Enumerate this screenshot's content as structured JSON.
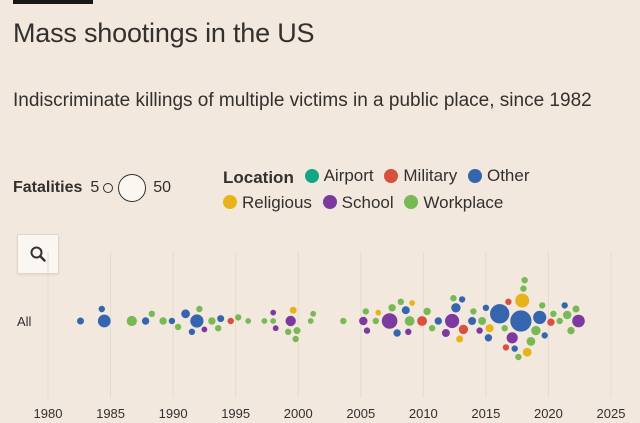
{
  "title": "Mass shootings in the US",
  "subtitle": "Indiscriminate killings of multiple victims in a public place, since 1982",
  "legend": {
    "fatalities_label": "Fatalities",
    "size_min": "5",
    "size_max": "50",
    "location_label": "Location",
    "locations": [
      {
        "name": "Airport",
        "color": "#13a584"
      },
      {
        "name": "Military",
        "color": "#d9503f"
      },
      {
        "name": "Other",
        "color": "#3665b0"
      },
      {
        "name": "Religious",
        "color": "#e8b31a"
      },
      {
        "name": "School",
        "color": "#7c3aa0"
      },
      {
        "name": "Workplace",
        "color": "#76b955"
      }
    ]
  },
  "search_icon": "search-icon",
  "chart_data": {
    "type": "scatter",
    "row_label": "All",
    "xlim": [
      1980,
      2025
    ],
    "xticks": [
      "1980",
      "1985",
      "1990",
      "1995",
      "2000",
      "2005",
      "2010",
      "2015",
      "2020",
      "2025"
    ],
    "size_range": [
      5,
      50
    ],
    "points": [
      {
        "year": 1982.6,
        "fatalities": 7,
        "location": "Other"
      },
      {
        "year": 1984.5,
        "fatalities": 22,
        "location": "Other"
      },
      {
        "year": 1984.3,
        "fatalities": 6,
        "location": "Other"
      },
      {
        "year": 1986.7,
        "fatalities": 14,
        "location": "Workplace"
      },
      {
        "year": 1987.8,
        "fatalities": 8,
        "location": "Other"
      },
      {
        "year": 1988.3,
        "fatalities": 6,
        "location": "Workplace"
      },
      {
        "year": 1989.2,
        "fatalities": 8,
        "location": "Workplace"
      },
      {
        "year": 1989.9,
        "fatalities": 6,
        "location": "Other"
      },
      {
        "year": 1990.4,
        "fatalities": 6,
        "location": "Workplace"
      },
      {
        "year": 1991.0,
        "fatalities": 11,
        "location": "Other"
      },
      {
        "year": 1991.9,
        "fatalities": 23,
        "location": "Other"
      },
      {
        "year": 1991.5,
        "fatalities": 6,
        "location": "Other"
      },
      {
        "year": 1992.1,
        "fatalities": 6,
        "location": "Workplace"
      },
      {
        "year": 1992.5,
        "fatalities": 5,
        "location": "School"
      },
      {
        "year": 1993.1,
        "fatalities": 8,
        "location": "Workplace"
      },
      {
        "year": 1993.6,
        "fatalities": 6,
        "location": "Workplace"
      },
      {
        "year": 1993.8,
        "fatalities": 7,
        "location": "Other"
      },
      {
        "year": 1994.6,
        "fatalities": 6,
        "location": "Military"
      },
      {
        "year": 1995.2,
        "fatalities": 6,
        "location": "Workplace"
      },
      {
        "year": 1996.0,
        "fatalities": 5,
        "location": "Workplace"
      },
      {
        "year": 1997.3,
        "fatalities": 5,
        "location": "Workplace"
      },
      {
        "year": 1998.0,
        "fatalities": 5,
        "location": "Workplace"
      },
      {
        "year": 1998.0,
        "fatalities": 5,
        "location": "School"
      },
      {
        "year": 1998.2,
        "fatalities": 5,
        "location": "School"
      },
      {
        "year": 1999.4,
        "fatalities": 15,
        "location": "School"
      },
      {
        "year": 1999.2,
        "fatalities": 6,
        "location": "Workplace"
      },
      {
        "year": 1999.8,
        "fatalities": 6,
        "location": "Workplace"
      },
      {
        "year": 1999.6,
        "fatalities": 7,
        "location": "Religious"
      },
      {
        "year": 1999.9,
        "fatalities": 7,
        "location": "Workplace"
      },
      {
        "year": 2001.0,
        "fatalities": 5,
        "location": "Workplace"
      },
      {
        "year": 2001.2,
        "fatalities": 5,
        "location": "Workplace"
      },
      {
        "year": 2003.6,
        "fatalities": 6,
        "location": "Workplace"
      },
      {
        "year": 2005.2,
        "fatalities": 10,
        "location": "School"
      },
      {
        "year": 2005.4,
        "fatalities": 6,
        "location": "Workplace"
      },
      {
        "year": 2005.5,
        "fatalities": 6,
        "location": "School"
      },
      {
        "year": 2006.2,
        "fatalities": 6,
        "location": "Workplace"
      },
      {
        "year": 2006.4,
        "fatalities": 5,
        "location": "Religious"
      },
      {
        "year": 2007.3,
        "fatalities": 32,
        "location": "School"
      },
      {
        "year": 2007.5,
        "fatalities": 8,
        "location": "Workplace"
      },
      {
        "year": 2007.9,
        "fatalities": 8,
        "location": "Other"
      },
      {
        "year": 2008.2,
        "fatalities": 6,
        "location": "Workplace"
      },
      {
        "year": 2008.6,
        "fatalities": 9,
        "location": "Other"
      },
      {
        "year": 2008.9,
        "fatalities": 13,
        "location": "Workplace"
      },
      {
        "year": 2008.8,
        "fatalities": 6,
        "location": "School"
      },
      {
        "year": 2009.1,
        "fatalities": 5,
        "location": "Religious"
      },
      {
        "year": 2009.9,
        "fatalities": 13,
        "location": "Military"
      },
      {
        "year": 2010.3,
        "fatalities": 8,
        "location": "Workplace"
      },
      {
        "year": 2010.7,
        "fatalities": 6,
        "location": "Workplace"
      },
      {
        "year": 2011.2,
        "fatalities": 8,
        "location": "Other"
      },
      {
        "year": 2011.8,
        "fatalities": 9,
        "location": "School"
      },
      {
        "year": 2012.3,
        "fatalities": 27,
        "location": "School"
      },
      {
        "year": 2012.6,
        "fatalities": 12,
        "location": "Other"
      },
      {
        "year": 2012.9,
        "fatalities": 7,
        "location": "Religious"
      },
      {
        "year": 2012.4,
        "fatalities": 6,
        "location": "Workplace"
      },
      {
        "year": 2013.2,
        "fatalities": 12,
        "location": "Military"
      },
      {
        "year": 2013.1,
        "fatalities": 6,
        "location": "Other"
      },
      {
        "year": 2013.9,
        "fatalities": 9,
        "location": "Other"
      },
      {
        "year": 2014.0,
        "fatalities": 6,
        "location": "Workplace"
      },
      {
        "year": 2014.5,
        "fatalities": 6,
        "location": "School"
      },
      {
        "year": 2014.7,
        "fatalities": 9,
        "location": "Workplace"
      },
      {
        "year": 2015.3,
        "fatalities": 9,
        "location": "Religious"
      },
      {
        "year": 2015.0,
        "fatalities": 6,
        "location": "Other"
      },
      {
        "year": 2015.2,
        "fatalities": 8,
        "location": "Other"
      },
      {
        "year": 2016.1,
        "fatalities": 49,
        "location": "Other"
      },
      {
        "year": 2017.8,
        "fatalities": 58,
        "location": "Other"
      },
      {
        "year": 2017.9,
        "fatalities": 26,
        "location": "Religious"
      },
      {
        "year": 2017.1,
        "fatalities": 17,
        "location": "School"
      },
      {
        "year": 2018.6,
        "fatalities": 11,
        "location": "Workplace"
      },
      {
        "year": 2018.3,
        "fatalities": 11,
        "location": "Religious"
      },
      {
        "year": 2019.3,
        "fatalities": 23,
        "location": "Other"
      },
      {
        "year": 2019.0,
        "fatalities": 12,
        "location": "Workplace"
      },
      {
        "year": 2016.5,
        "fatalities": 6,
        "location": "Workplace"
      },
      {
        "year": 2016.8,
        "fatalities": 6,
        "location": "Military"
      },
      {
        "year": 2018.0,
        "fatalities": 6,
        "location": "Workplace"
      },
      {
        "year": 2019.5,
        "fatalities": 6,
        "location": "Workplace"
      },
      {
        "year": 2021.5,
        "fatalities": 10,
        "location": "Workplace"
      },
      {
        "year": 2020.2,
        "fatalities": 8,
        "location": "Military"
      },
      {
        "year": 2022.4,
        "fatalities": 21,
        "location": "School"
      },
      {
        "year": 2021.8,
        "fatalities": 8,
        "location": "Workplace"
      },
      {
        "year": 2022.2,
        "fatalities": 7,
        "location": "Workplace"
      },
      {
        "year": 2021.3,
        "fatalities": 6,
        "location": "Other"
      },
      {
        "year": 2016.6,
        "fatalities": 6,
        "location": "Military"
      },
      {
        "year": 2017.3,
        "fatalities": 6,
        "location": "Other"
      },
      {
        "year": 2017.6,
        "fatalities": 6,
        "location": "Workplace"
      },
      {
        "year": 2018.1,
        "fatalities": 6,
        "location": "Workplace"
      },
      {
        "year": 2019.7,
        "fatalities": 6,
        "location": "Other"
      },
      {
        "year": 2020.4,
        "fatalities": 6,
        "location": "Workplace"
      },
      {
        "year": 2020.9,
        "fatalities": 6,
        "location": "Workplace"
      }
    ]
  }
}
